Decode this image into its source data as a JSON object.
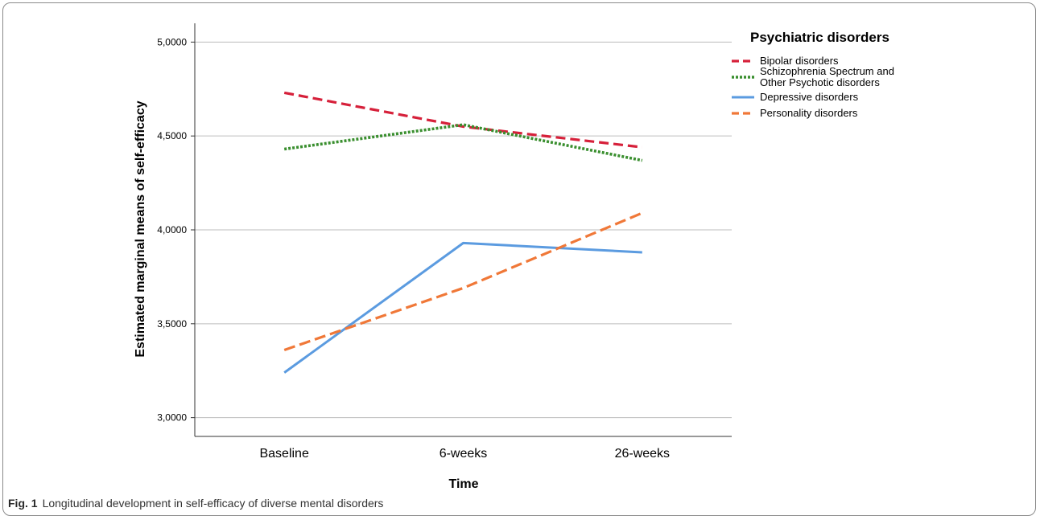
{
  "figure": {
    "label": "Fig. 1",
    "caption": "Longitudinal development in self-efficacy of diverse mental disorders"
  },
  "colors": {
    "bipolar": "#d6203a",
    "schizophrenia": "#3a8f2f",
    "depressive": "#5b9be0",
    "personality": "#f07838",
    "gridline": "#bdbdbd",
    "axis": "#333333"
  },
  "chart_data": {
    "type": "line",
    "title": "",
    "xlabel": "Time",
    "ylabel": "Estimated marginal means of self-efficacy",
    "categories": [
      "Baseline",
      "6-weeks",
      "26-weeks"
    ],
    "ylim": [
      2.9,
      5.1
    ],
    "yticks": [
      3.0,
      3.5,
      4.0,
      4.5,
      5.0
    ],
    "ytick_labels": [
      "3,0000",
      "3,5000",
      "4,0000",
      "4,5000",
      "5,0000"
    ],
    "grid": "horizontal",
    "legend": {
      "title": "Psychiatric disorders",
      "position": "top-right, outside plot"
    },
    "series": [
      {
        "name": "Bipolar disorders",
        "legend_lines": [
          "Bipolar disorders"
        ],
        "color": "#d6203a",
        "dash": "dashed",
        "values": [
          4.73,
          4.55,
          4.44
        ]
      },
      {
        "name": "Schizophrenia Spectrum and Other Psychotic disorders",
        "legend_lines": [
          "Schizophrenia Spectrum and",
          "Other Psychotic disorders"
        ],
        "color": "#3a8f2f",
        "dash": "dotted",
        "values": [
          4.43,
          4.56,
          4.37
        ]
      },
      {
        "name": "Depressive disorders",
        "legend_lines": [
          "Depressive disorders"
        ],
        "color": "#5b9be0",
        "dash": "solid",
        "values": [
          3.24,
          3.93,
          3.88
        ]
      },
      {
        "name": "Personality disorders",
        "legend_lines": [
          "Personality disorders"
        ],
        "color": "#f07838",
        "dash": "long-dashed",
        "values": [
          3.36,
          3.69,
          4.09
        ]
      }
    ]
  }
}
